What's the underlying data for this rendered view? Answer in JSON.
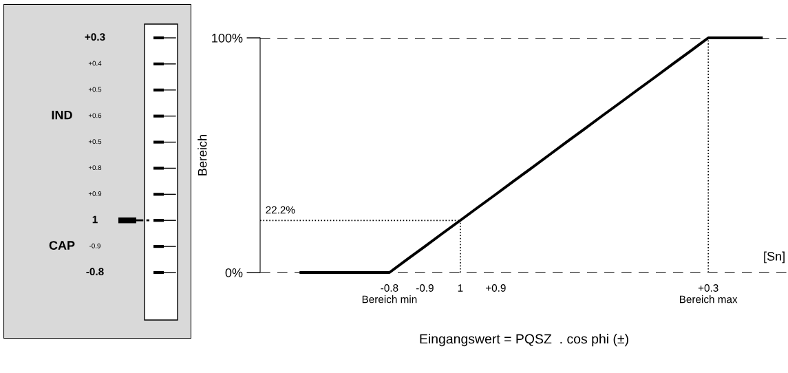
{
  "chart_data": [
    {
      "type": "other",
      "categories": [
        "+0.3",
        "+0.4",
        "+0.5",
        "+0.6",
        "+0.5",
        "+0.8",
        "+0.9",
        "1",
        "-0.9",
        "-0.8"
      ],
      "needle": "1",
      "annotations": [
        "IND",
        "CAP"
      ]
    },
    {
      "type": "line",
      "ylabel": "Bereich",
      "xlabel": "Eingangswert = PQSZ  . cos phi (±)",
      "annotations": [
        "[Sn]"
      ],
      "categories": [
        null,
        null,
        null,
        null,
        null,
        "-0.8\nBereich min",
        null,
        "-0.9",
        null,
        "1",
        null,
        "+0.9",
        null,
        null,
        null,
        null,
        null,
        null,
        null,
        null,
        null,
        null,
        null,
        "+0.3\nBereich max",
        null,
        null,
        null
      ],
      "series": [
        {
          "color": "#000000",
          "values": [
            0,
            0,
            0,
            0,
            0,
            0,
            5.6,
            11.1,
            16.7,
            22.2,
            27.8,
            33.3,
            38.9,
            44.4,
            50,
            55.6,
            61.1,
            66.7,
            72.2,
            77.8,
            83.3,
            88.9,
            94.4,
            100,
            100,
            100,
            100
          ]
        }
      ],
      "ylim": [
        0,
        100
      ],
      "yticks": [
        {
          "value": 0,
          "label": "0%"
        },
        {
          "value": 100,
          "label": "100%"
        }
      ],
      "ref_lines": [
        {
          "axis": "y",
          "value": 22.2,
          "label": "22.2%",
          "line_style": "dotted"
        },
        {
          "axis": "x",
          "value": "1",
          "line_style": "dotted"
        },
        {
          "axis": "x",
          "value": "+0.3\nBereich max",
          "line_style": "dotted"
        }
      ],
      "grid": "y",
      "line_style": "solid",
      "marker": "none",
      "legend": false
    }
  ]
}
